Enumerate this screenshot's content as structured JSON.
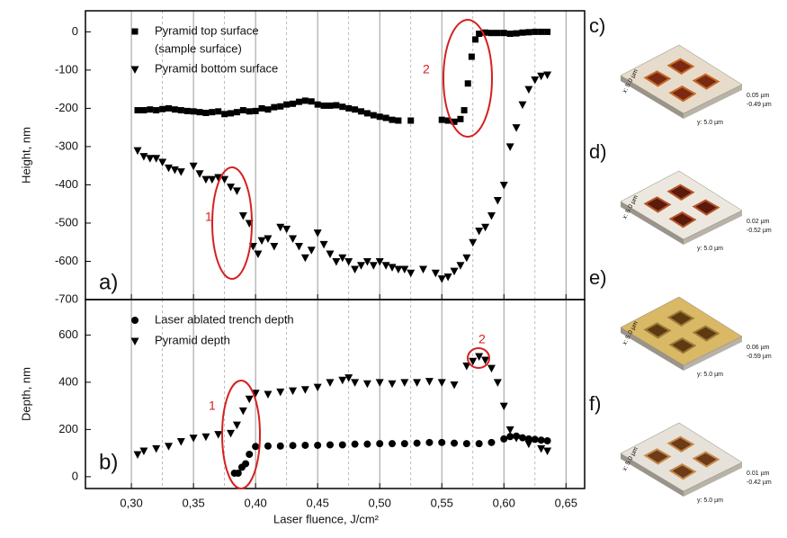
{
  "chart_data": [
    {
      "type": "scatter",
      "xlim": [
        0.263,
        0.665
      ],
      "ylim": [
        -700,
        55
      ],
      "xticks": [
        0.3,
        0.35,
        0.4,
        0.45,
        0.5,
        0.55,
        0.6,
        0.65
      ],
      "xminorticks": [
        0.325,
        0.375,
        0.425,
        0.475,
        0.525,
        0.575,
        0.625
      ],
      "yticks": [
        0,
        -100,
        -200,
        -300,
        -400,
        -500,
        -600,
        -700
      ],
      "ylabel": "Height, nm",
      "grid": true,
      "legend_note": "(sample surface)",
      "annotations": [
        {
          "text": "a)"
        },
        {
          "text": "1"
        },
        {
          "text": "2"
        }
      ],
      "series": [
        {
          "name": "Pyramid top surface",
          "marker": "square",
          "color": "#000000",
          "x": [
            0.305,
            0.31,
            0.315,
            0.32,
            0.325,
            0.33,
            0.335,
            0.34,
            0.345,
            0.35,
            0.355,
            0.36,
            0.365,
            0.37,
            0.375,
            0.38,
            0.385,
            0.39,
            0.395,
            0.4,
            0.405,
            0.41,
            0.415,
            0.42,
            0.425,
            0.43,
            0.435,
            0.44,
            0.445,
            0.45,
            0.455,
            0.46,
            0.465,
            0.47,
            0.475,
            0.48,
            0.485,
            0.49,
            0.495,
            0.5,
            0.505,
            0.51,
            0.515,
            0.525,
            0.55,
            0.555,
            0.56,
            0.565,
            0.568,
            0.571,
            0.574,
            0.577,
            0.58,
            0.585,
            0.59,
            0.595,
            0.6,
            0.605,
            0.61,
            0.615,
            0.62,
            0.625,
            0.63,
            0.635
          ],
          "values": [
            -205,
            -205,
            -203,
            -205,
            -202,
            -200,
            -203,
            -205,
            -207,
            -208,
            -210,
            -212,
            -210,
            -208,
            -215,
            -213,
            -210,
            -205,
            -208,
            -207,
            -200,
            -203,
            -197,
            -195,
            -190,
            -188,
            -183,
            -180,
            -182,
            -190,
            -193,
            -193,
            -192,
            -196,
            -200,
            -203,
            -208,
            -213,
            -218,
            -222,
            -225,
            -230,
            -232,
            -232,
            -230,
            -232,
            -235,
            -228,
            -205,
            -135,
            -65,
            -20,
            -5,
            -2,
            -3,
            -3,
            -3,
            -5,
            -4,
            -2,
            -1,
            0,
            0,
            0
          ]
        },
        {
          "name": "Pyramid bottom surface",
          "marker": "triangle-down",
          "color": "#000000",
          "x": [
            0.305,
            0.31,
            0.315,
            0.32,
            0.325,
            0.33,
            0.335,
            0.34,
            0.35,
            0.355,
            0.36,
            0.365,
            0.37,
            0.375,
            0.38,
            0.385,
            0.39,
            0.395,
            0.398,
            0.402,
            0.405,
            0.41,
            0.415,
            0.42,
            0.425,
            0.43,
            0.435,
            0.44,
            0.445,
            0.45,
            0.455,
            0.46,
            0.465,
            0.47,
            0.475,
            0.48,
            0.485,
            0.49,
            0.495,
            0.5,
            0.505,
            0.51,
            0.515,
            0.52,
            0.525,
            0.535,
            0.545,
            0.55,
            0.555,
            0.56,
            0.565,
            0.57,
            0.575,
            0.58,
            0.585,
            0.59,
            0.595,
            0.6,
            0.605,
            0.61,
            0.615,
            0.62,
            0.625,
            0.63,
            0.635
          ],
          "values": [
            -310,
            -325,
            -330,
            -330,
            -340,
            -355,
            -360,
            -365,
            -350,
            -370,
            -385,
            -385,
            -380,
            -385,
            -405,
            -415,
            -480,
            -500,
            -560,
            -580,
            -545,
            -540,
            -560,
            -510,
            -515,
            -540,
            -560,
            -590,
            -570,
            -525,
            -555,
            -580,
            -600,
            -590,
            -600,
            -620,
            -610,
            -600,
            -610,
            -600,
            -610,
            -615,
            -620,
            -620,
            -630,
            -620,
            -630,
            -645,
            -640,
            -625,
            -610,
            -590,
            -550,
            -520,
            -510,
            -480,
            -440,
            -400,
            -300,
            -250,
            -190,
            -150,
            -125,
            -115,
            -112
          ]
        }
      ]
    },
    {
      "type": "scatter",
      "xlim": [
        0.263,
        0.665
      ],
      "ylim": [
        -50,
        750
      ],
      "xticks": [
        {
          "value": 0.3,
          "label": "0,30"
        },
        {
          "value": 0.35,
          "label": "0,35"
        },
        {
          "value": 0.4,
          "label": "0,40"
        },
        {
          "value": 0.45,
          "label": "0,45"
        },
        {
          "value": 0.5,
          "label": "0,50"
        },
        {
          "value": 0.55,
          "label": "0,55"
        },
        {
          "value": 0.6,
          "label": "0,60"
        },
        {
          "value": 0.65,
          "label": "0,65"
        }
      ],
      "xminorticks": [
        0.325,
        0.375,
        0.425,
        0.475,
        0.525,
        0.575,
        0.625
      ],
      "yticks": [
        0,
        200,
        400,
        600
      ],
      "xlabel": "Laser fluence, J/cm²",
      "ylabel": "Depth, nm",
      "grid": true,
      "annotations": [
        {
          "text": "b)"
        },
        {
          "text": "1"
        },
        {
          "text": "2"
        }
      ],
      "series": [
        {
          "name": "Laser ablated trench depth",
          "marker": "circle",
          "color": "#000000",
          "x": [
            0.383,
            0.386,
            0.389,
            0.392,
            0.395,
            0.4,
            0.41,
            0.42,
            0.43,
            0.44,
            0.45,
            0.46,
            0.47,
            0.48,
            0.49,
            0.5,
            0.51,
            0.52,
            0.53,
            0.54,
            0.55,
            0.56,
            0.57,
            0.58,
            0.59,
            0.6,
            0.605,
            0.61,
            0.615,
            0.62,
            0.625,
            0.63,
            0.635
          ],
          "values": [
            15,
            15,
            40,
            55,
            95,
            128,
            130,
            130,
            132,
            133,
            133,
            135,
            135,
            138,
            138,
            140,
            140,
            140,
            142,
            145,
            145,
            142,
            140,
            140,
            145,
            160,
            170,
            172,
            165,
            160,
            158,
            155,
            152
          ]
        },
        {
          "name": "Pyramid depth",
          "marker": "triangle-down",
          "color": "#000000",
          "x": [
            0.305,
            0.31,
            0.32,
            0.33,
            0.34,
            0.35,
            0.36,
            0.37,
            0.38,
            0.385,
            0.39,
            0.395,
            0.4,
            0.41,
            0.42,
            0.43,
            0.44,
            0.45,
            0.46,
            0.47,
            0.475,
            0.48,
            0.49,
            0.5,
            0.51,
            0.52,
            0.53,
            0.54,
            0.55,
            0.56,
            0.57,
            0.575,
            0.58,
            0.585,
            0.59,
            0.595,
            0.6,
            0.605,
            0.61,
            0.62,
            0.63,
            0.635
          ],
          "values": [
            95,
            110,
            120,
            130,
            150,
            165,
            170,
            180,
            185,
            220,
            280,
            330,
            355,
            350,
            360,
            365,
            370,
            380,
            400,
            410,
            420,
            400,
            395,
            400,
            395,
            400,
            400,
            405,
            400,
            390,
            470,
            490,
            510,
            495,
            460,
            400,
            300,
            200,
            165,
            140,
            120,
            110
          ]
        }
      ]
    }
  ],
  "panels": [
    {
      "label": "c)",
      "x_size": "x: 5.0 µm",
      "y_size": "y: 5.0 µm",
      "z_max": "0.05 µm",
      "z_min": "-0.49 µm"
    },
    {
      "label": "d)",
      "x_size": "x: 5.0 µm",
      "y_size": "y: 5.0 µm",
      "z_max": "0.02 µm",
      "z_min": "-0.52 µm"
    },
    {
      "label": "e)",
      "x_size": "x: 5.0 µm",
      "y_size": "y: 5.0 µm",
      "z_max": "0.06 µm",
      "z_min": "-0.59 µm"
    },
    {
      "label": "f)",
      "x_size": "x: 5.0 µm",
      "y_size": "y: 5.0 µm",
      "z_max": "0.01 µm",
      "z_min": "-0.42 µm"
    }
  ]
}
